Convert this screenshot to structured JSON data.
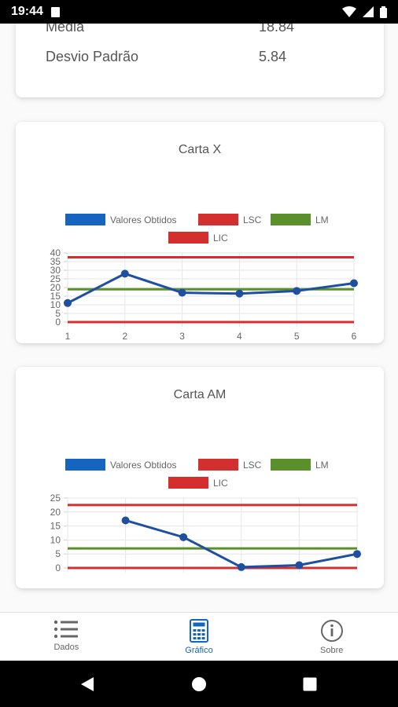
{
  "status": {
    "time": "19:44"
  },
  "stats": {
    "rows": [
      {
        "label": "Média",
        "value": "18.84"
      },
      {
        "label": "Desvio Padrão",
        "value": "5.84"
      }
    ]
  },
  "legend": {
    "obtained": "Valores Obtidos",
    "lsc": "LSC",
    "lm": "LM",
    "lic": "LIC"
  },
  "colors": {
    "series_blue": "#1e4fa0",
    "legend_blue": "#1565c0",
    "limit_red": "#d32f2f",
    "mean_green": "#5b8f2b",
    "nav_active": "#1565c0"
  },
  "chart_data": [
    {
      "type": "line",
      "title": "Carta X",
      "x": [
        1,
        2,
        3,
        4,
        5,
        6
      ],
      "x_tick_labels": [
        "1",
        "2",
        "3",
        "4",
        "5",
        "6"
      ],
      "ylim": [
        0,
        40
      ],
      "y_ticks": [
        0,
        5,
        10,
        15,
        20,
        25,
        30,
        35,
        40
      ],
      "series": [
        {
          "name": "Valores Obtidos",
          "values": [
            11,
            28,
            17,
            16.5,
            18,
            22.5
          ]
        },
        {
          "name": "LSC",
          "values": [
            37.5,
            37.5,
            37.5,
            37.5,
            37.5,
            37.5
          ]
        },
        {
          "name": "LM",
          "values": [
            19,
            19,
            19,
            19,
            19,
            19
          ]
        },
        {
          "name": "LIC",
          "values": [
            0,
            0,
            0,
            0,
            0,
            0
          ]
        }
      ],
      "grid": true,
      "legend_position": "top"
    },
    {
      "type": "line",
      "title": "Carta AM",
      "x": [
        1,
        2,
        3,
        4,
        5,
        6
      ],
      "x_tick_labels": [],
      "ylim": [
        0,
        25
      ],
      "y_ticks": [
        0,
        5,
        10,
        15,
        20,
        25
      ],
      "series": [
        {
          "name": "Valores Obtidos",
          "values": [
            null,
            17,
            11,
            0.3,
            1,
            5
          ]
        },
        {
          "name": "LSC",
          "values": [
            22.5,
            22.5,
            22.5,
            22.5,
            22.5,
            22.5
          ]
        },
        {
          "name": "LM",
          "values": [
            7,
            7,
            7,
            7,
            7,
            7
          ]
        },
        {
          "name": "LIC",
          "values": [
            0,
            0,
            0,
            0,
            0,
            0
          ]
        }
      ],
      "grid": true,
      "legend_position": "top"
    }
  ],
  "nav": {
    "items": [
      {
        "label": "Dados",
        "icon": "list-icon"
      },
      {
        "label": "Gráfico",
        "icon": "calculator-icon"
      },
      {
        "label": "Sobre",
        "icon": "info-icon"
      }
    ],
    "active_index": 1
  },
  "system_nav": {
    "icons": [
      "back-icon",
      "home-icon",
      "recents-icon"
    ]
  }
}
